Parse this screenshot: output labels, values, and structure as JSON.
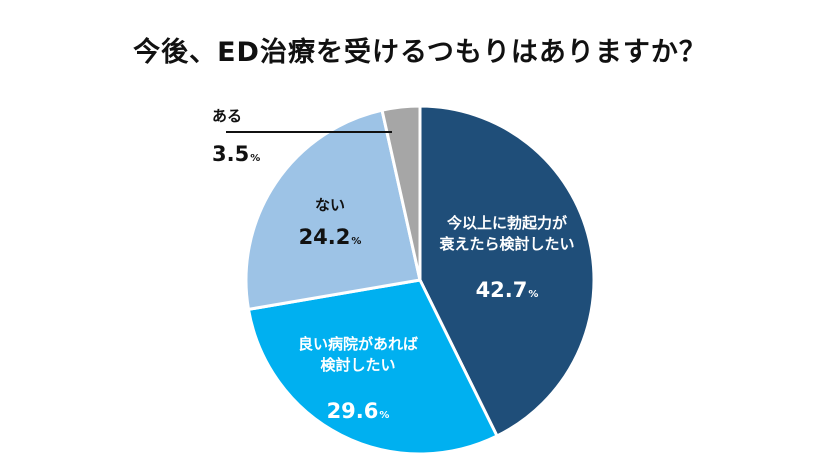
{
  "chart_data": {
    "type": "pie",
    "title": "今後、ED治療を受けるつもりはありますか？",
    "unit": "%",
    "slices": [
      {
        "label": "今以上に勃起力が衰えたら検討したい",
        "label_lines": [
          "今以上に勃起力が",
          "衰えたら検討したい"
        ],
        "value": 42.7,
        "value_text": "42.7",
        "color": "#1f4e79",
        "text_color": "#ffffff"
      },
      {
        "label": "良い病院があれば検討したい",
        "label_lines": [
          "良い病院があれば",
          "検討したい"
        ],
        "value": 29.6,
        "value_text": "29.6",
        "color": "#00b0f0",
        "text_color": "#ffffff"
      },
      {
        "label": "ない",
        "label_lines": [
          "ない"
        ],
        "value": 24.2,
        "value_text": "24.2",
        "color": "#9dc3e6",
        "text_color": "#111111"
      },
      {
        "label": "ある",
        "label_lines": [
          "ある"
        ],
        "value": 3.5,
        "value_text": "3.5",
        "color": "#a6a6a6",
        "text_color": "#111111"
      }
    ]
  }
}
